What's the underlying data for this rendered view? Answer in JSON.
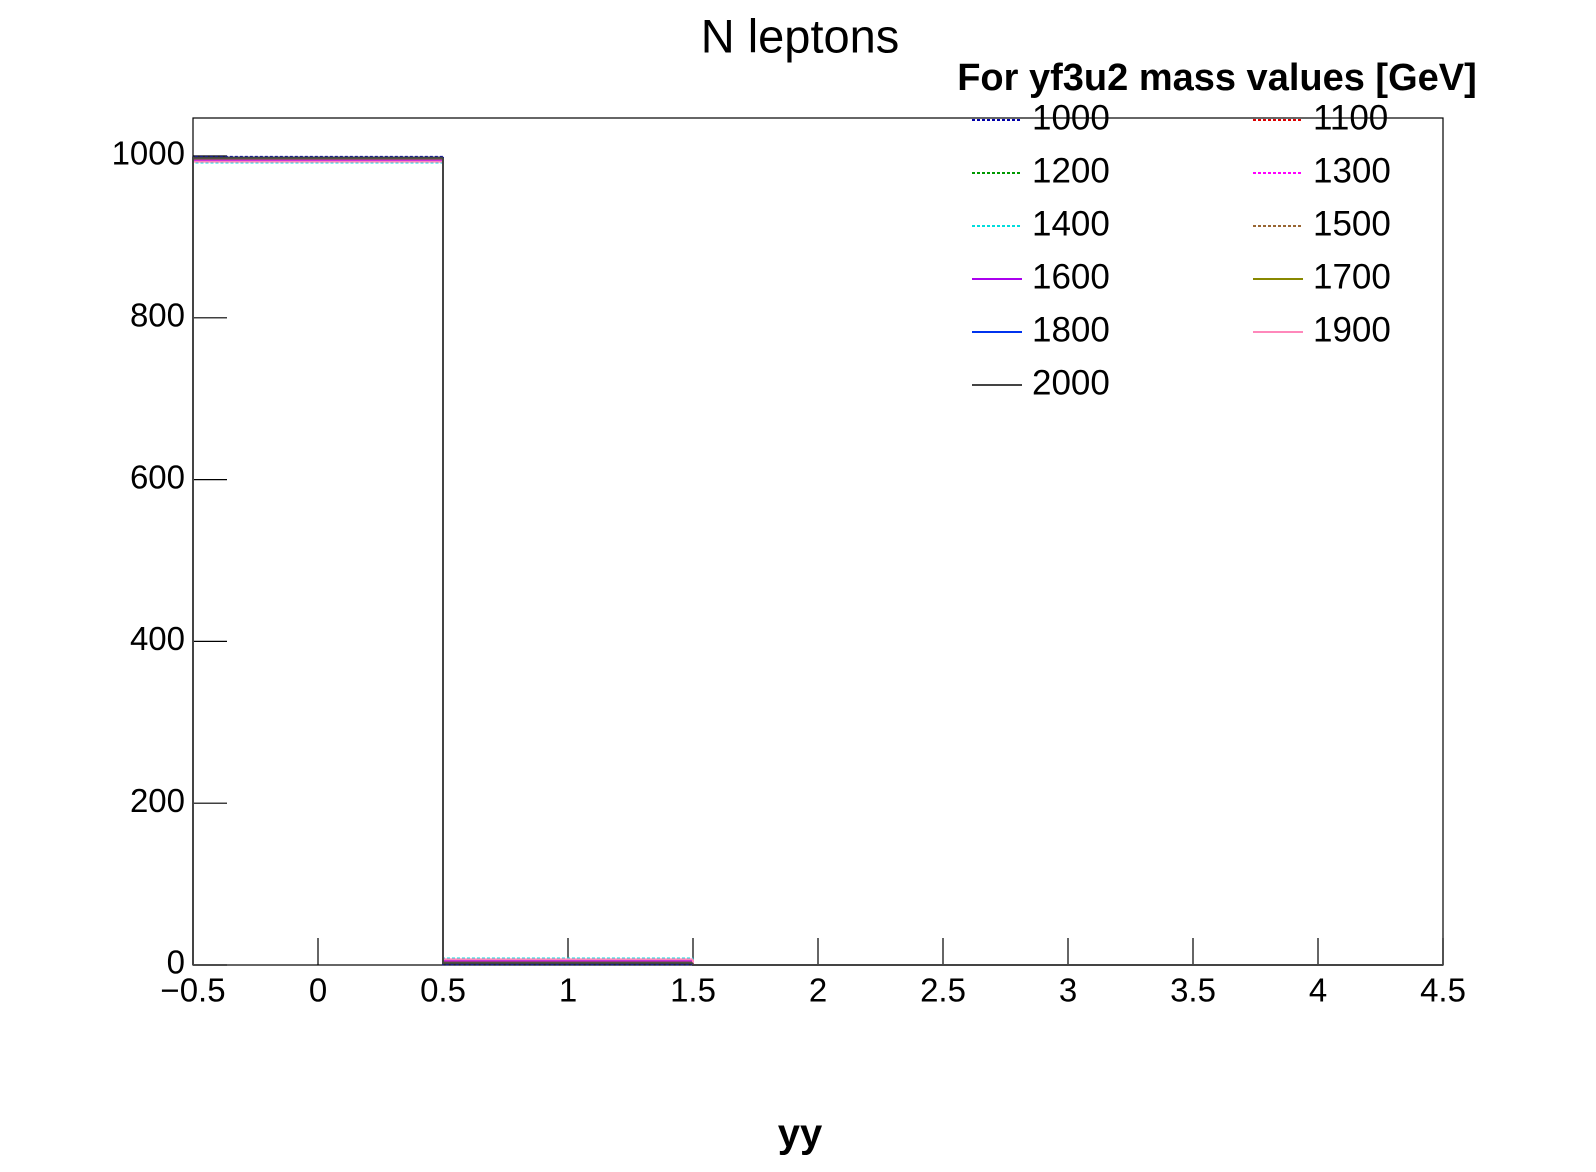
{
  "chart_data": {
    "type": "histogram",
    "title": "N leptons",
    "xlabel": "yy",
    "legend_title": "For yf3u2 mass values [GeV]",
    "legend": "upper right",
    "bins": [
      -0.5,
      0.5,
      1.5,
      2.5,
      3.5,
      4.5
    ],
    "xlim": [
      -0.5,
      4.5
    ],
    "xticks": [
      {
        "value": -0.5,
        "label": "−0.5"
      },
      0,
      0.5,
      1,
      1.5,
      2,
      2.5,
      3,
      3.5,
      4,
      4.5
    ],
    "ylim": [
      0,
      1047
    ],
    "yticks": [
      0,
      200,
      400,
      600,
      800,
      1000
    ],
    "grid": false,
    "series": [
      {
        "name": "1000",
        "color": "#0000aa",
        "style": "dotted",
        "values": [
          999,
          1,
          0,
          0,
          0
        ]
      },
      {
        "name": "1100",
        "color": "#dd0000",
        "style": "dotted",
        "values": [
          997,
          3,
          0,
          0,
          0
        ]
      },
      {
        "name": "1200",
        "color": "#009900",
        "style": "dotted",
        "values": [
          996,
          4,
          0,
          0,
          0
        ]
      },
      {
        "name": "1300",
        "color": "#ff00ff",
        "style": "dotted",
        "values": [
          995,
          5,
          0,
          0,
          0
        ]
      },
      {
        "name": "1400",
        "color": "#00dddd",
        "style": "dotted",
        "values": [
          992,
          8,
          0,
          0,
          0
        ]
      },
      {
        "name": "1500",
        "color": "#996633",
        "style": "dotted",
        "values": [
          996,
          4,
          0,
          0,
          0
        ]
      },
      {
        "name": "1600",
        "color": "#aa00ee",
        "style": "solid",
        "values": [
          995,
          5,
          0,
          0,
          0
        ]
      },
      {
        "name": "1700",
        "color": "#888800",
        "style": "solid",
        "values": [
          997,
          3,
          0,
          0,
          0
        ]
      },
      {
        "name": "1800",
        "color": "#0033ee",
        "style": "solid",
        "values": [
          998,
          2,
          0,
          0,
          0
        ]
      },
      {
        "name": "1900",
        "color": "#ff88bb",
        "style": "solid",
        "values": [
          993,
          7,
          0,
          0,
          0
        ]
      },
      {
        "name": "2000",
        "color": "#444444",
        "style": "solid",
        "values": [
          998,
          2,
          0,
          0,
          0
        ]
      }
    ]
  }
}
